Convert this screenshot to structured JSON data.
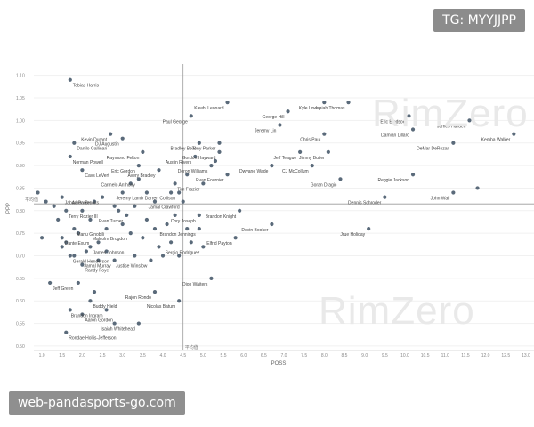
{
  "badge": "TG: MYYJJPP",
  "footer": "web-pandasports-go.com",
  "watermarks": [
    "RimZero",
    "RimZero"
  ],
  "chart_data": {
    "type": "scatter",
    "xlabel": "POSS",
    "ylabel": "PPP",
    "xlim": [
      0.8,
      13.2
    ],
    "ylim": [
      0.49,
      1.125
    ],
    "xticks": [
      1.0,
      1.5,
      2.0,
      2.5,
      3.0,
      3.5,
      4.0,
      4.5,
      5.0,
      5.5,
      6.0,
      6.5,
      7.0,
      7.5,
      8.0,
      8.5,
      9.0,
      9.5,
      10.0,
      10.5,
      11.0,
      11.5,
      12.0,
      12.5,
      13.0
    ],
    "yticks": [
      0.5,
      0.55,
      0.6,
      0.65,
      0.7,
      0.75,
      0.8,
      0.85,
      0.9,
      0.95,
      1.0,
      1.05,
      1.1
    ],
    "ref_x": 4.5,
    "ref_y": 0.815,
    "ref_label": "平均值",
    "point_color": "#5a6a7a",
    "labeled_points": [
      {
        "name": "Tobias Harris",
        "x": 1.7,
        "y": 1.09
      },
      {
        "name": "Kawhi Leonard",
        "x": 5.6,
        "y": 1.04
      },
      {
        "name": "Kyle Lowry",
        "x": 8.0,
        "y": 1.04
      },
      {
        "name": "Isaiah Thomas",
        "x": 8.6,
        "y": 1.04
      },
      {
        "name": "George Hill",
        "x": 7.1,
        "y": 1.02
      },
      {
        "name": "Eric Bledsoe",
        "x": 10.1,
        "y": 1.01
      },
      {
        "name": "James Harden",
        "x": 11.6,
        "y": 1.0
      },
      {
        "name": "Paul George",
        "x": 4.7,
        "y": 1.01
      },
      {
        "name": "Jeremy Lin",
        "x": 6.9,
        "y": 0.99
      },
      {
        "name": "Damian Lillard",
        "x": 10.2,
        "y": 0.98
      },
      {
        "name": "Kevin Durant",
        "x": 2.7,
        "y": 0.97
      },
      {
        "name": "DJ Augustin",
        "x": 3.0,
        "y": 0.96
      },
      {
        "name": "Chris Paul",
        "x": 8.0,
        "y": 0.97
      },
      {
        "name": "Kemba Walker",
        "x": 12.7,
        "y": 0.97
      },
      {
        "name": "Tony Parker",
        "x": 5.4,
        "y": 0.95
      },
      {
        "name": "Danilo Gallinari",
        "x": 1.8,
        "y": 0.95
      },
      {
        "name": "Bradley Beal",
        "x": 4.9,
        "y": 0.95
      },
      {
        "name": "DeMar DeRozan",
        "x": 11.2,
        "y": 0.95
      },
      {
        "name": "Raymond Felton",
        "x": 3.5,
        "y": 0.93
      },
      {
        "name": "Gordon Hayward",
        "x": 5.4,
        "y": 0.93
      },
      {
        "name": "Jeff Teague",
        "x": 7.4,
        "y": 0.93
      },
      {
        "name": "Jimmy Butler",
        "x": 8.1,
        "y": 0.93
      },
      {
        "name": "Norman Powell",
        "x": 1.7,
        "y": 0.92
      },
      {
        "name": "Austin Rivers",
        "x": 4.8,
        "y": 0.92
      },
      {
        "name": "Eric Gordon",
        "x": 3.4,
        "y": 0.9
      },
      {
        "name": "Deron Williams",
        "x": 5.2,
        "y": 0.9
      },
      {
        "name": "Dwyane Wade",
        "x": 6.7,
        "y": 0.9
      },
      {
        "name": "CJ McCollum",
        "x": 7.7,
        "y": 0.9
      },
      {
        "name": "Avery Bradley",
        "x": 3.9,
        "y": 0.89
      },
      {
        "name": "Cavs LeVert",
        "x": 2.0,
        "y": 0.89
      },
      {
        "name": "Evan Fournier",
        "x": 5.6,
        "y": 0.88
      },
      {
        "name": "Reggie Jackson",
        "x": 10.2,
        "y": 0.88
      },
      {
        "name": "Carmelo Anthony",
        "x": 3.4,
        "y": 0.87
      },
      {
        "name": "Goran Dragic",
        "x": 8.4,
        "y": 0.87
      },
      {
        "name": "Tim Frazier",
        "x": 5.0,
        "y": 0.86
      },
      {
        "name": "Jeremy Lamb",
        "x": 3.6,
        "y": 0.84
      },
      {
        "name": "Darren Collison",
        "x": 4.4,
        "y": 0.84
      },
      {
        "name": "John Wall",
        "x": 11.2,
        "y": 0.84
      },
      {
        "name": "Jabari Parker",
        "x": 1.5,
        "y": 0.83
      },
      {
        "name": "Aaron Brooks",
        "x": 2.5,
        "y": 0.83
      },
      {
        "name": "Dennis Schroder",
        "x": 9.5,
        "y": 0.83
      },
      {
        "name": "Jamal Crawford",
        "x": 4.5,
        "y": 0.82
      },
      {
        "name": "Brandon Knight",
        "x": 5.9,
        "y": 0.8
      },
      {
        "name": "Terry Rozier III",
        "x": 1.6,
        "y": 0.8
      },
      {
        "name": "Cory Joseph",
        "x": 4.9,
        "y": 0.79
      },
      {
        "name": "Evan Turner",
        "x": 3.1,
        "y": 0.79
      },
      {
        "name": "Devin Booker",
        "x": 6.7,
        "y": 0.77
      },
      {
        "name": "Manu Ginobili",
        "x": 1.8,
        "y": 0.76
      },
      {
        "name": "Brandon Jennings",
        "x": 4.9,
        "y": 0.76
      },
      {
        "name": "Jrue Holiday",
        "x": 9.1,
        "y": 0.76
      },
      {
        "name": "Malcolm Brogdon",
        "x": 3.2,
        "y": 0.75
      },
      {
        "name": "Dante Exum",
        "x": 1.5,
        "y": 0.74
      },
      {
        "name": "Elfrid Payton",
        "x": 5.8,
        "y": 0.74
      },
      {
        "name": "Sergio Rodriguez",
        "x": 5.0,
        "y": 0.72
      },
      {
        "name": "James Johnson",
        "x": 2.2,
        "y": 0.72
      },
      {
        "name": "Gerald Henderson",
        "x": 1.7,
        "y": 0.7
      },
      {
        "name": "Jamal Murray",
        "x": 2.8,
        "y": 0.69
      },
      {
        "name": "Justise Winslow",
        "x": 3.7,
        "y": 0.69
      },
      {
        "name": "Randy Foye",
        "x": 2.0,
        "y": 0.68
      },
      {
        "name": "Dion Waiters",
        "x": 5.2,
        "y": 0.65
      },
      {
        "name": "Jeff Green",
        "x": 1.2,
        "y": 0.64
      },
      {
        "name": "Rajon Rondo",
        "x": 3.8,
        "y": 0.62
      },
      {
        "name": "Nicolas Batum",
        "x": 4.4,
        "y": 0.6
      },
      {
        "name": "Buddy Hield",
        "x": 2.2,
        "y": 0.6
      },
      {
        "name": "Brandon Ingram",
        "x": 2.6,
        "y": 0.58
      },
      {
        "name": "Aaron Gordon",
        "x": 2.0,
        "y": 0.57
      },
      {
        "name": "Isaiah Whitehead",
        "x": 3.4,
        "y": 0.55
      },
      {
        "name": "Rondae Hollis-Jefferson",
        "x": 1.6,
        "y": 0.53
      }
    ],
    "unlabeled_points": [
      {
        "x": 0.9,
        "y": 0.84
      },
      {
        "x": 1.1,
        "y": 0.82
      },
      {
        "x": 1.3,
        "y": 0.81
      },
      {
        "x": 1.4,
        "y": 0.78
      },
      {
        "x": 1.6,
        "y": 0.73
      },
      {
        "x": 1.5,
        "y": 0.72
      },
      {
        "x": 1.9,
        "y": 0.75
      },
      {
        "x": 2.1,
        "y": 0.71
      },
      {
        "x": 2.4,
        "y": 0.73
      },
      {
        "x": 2.3,
        "y": 0.82
      },
      {
        "x": 2.6,
        "y": 0.76
      },
      {
        "x": 2.9,
        "y": 0.8
      },
      {
        "x": 3.0,
        "y": 0.77
      },
      {
        "x": 3.3,
        "y": 0.81
      },
      {
        "x": 3.5,
        "y": 0.74
      },
      {
        "x": 3.6,
        "y": 0.78
      },
      {
        "x": 3.8,
        "y": 0.76
      },
      {
        "x": 3.9,
        "y": 0.72
      },
      {
        "x": 4.1,
        "y": 0.77
      },
      {
        "x": 4.3,
        "y": 0.79
      },
      {
        "x": 4.0,
        "y": 0.7
      },
      {
        "x": 4.4,
        "y": 0.7
      },
      {
        "x": 4.2,
        "y": 0.84
      },
      {
        "x": 4.3,
        "y": 0.86
      },
      {
        "x": 3.2,
        "y": 0.86
      },
      {
        "x": 3.0,
        "y": 0.84
      },
      {
        "x": 4.7,
        "y": 0.73
      },
      {
        "x": 4.6,
        "y": 0.76
      },
      {
        "x": 4.2,
        "y": 0.73
      },
      {
        "x": 3.8,
        "y": 0.82
      },
      {
        "x": 2.8,
        "y": 0.81
      },
      {
        "x": 2.4,
        "y": 0.69
      },
      {
        "x": 2.6,
        "y": 0.71
      },
      {
        "x": 2.2,
        "y": 0.78
      },
      {
        "x": 2.0,
        "y": 0.8
      },
      {
        "x": 1.8,
        "y": 0.7
      },
      {
        "x": 1.9,
        "y": 0.64
      },
      {
        "x": 2.3,
        "y": 0.62
      },
      {
        "x": 1.7,
        "y": 0.58
      },
      {
        "x": 2.8,
        "y": 0.55
      },
      {
        "x": 3.3,
        "y": 0.7
      },
      {
        "x": 1.0,
        "y": 0.74
      },
      {
        "x": 11.8,
        "y": 0.85
      },
      {
        "x": 5.3,
        "y": 0.91
      },
      {
        "x": 4.6,
        "y": 0.88
      }
    ]
  }
}
